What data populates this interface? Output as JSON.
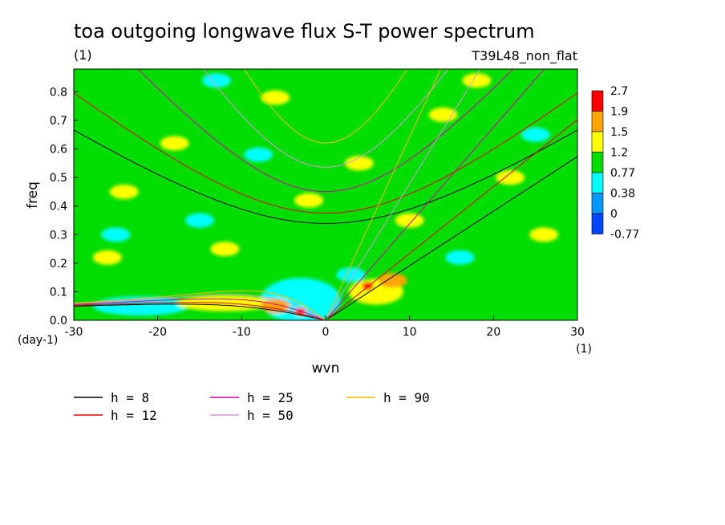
{
  "title": "toa outgoing longwave flux S-T power spectrum",
  "subtitle_left": "(1)",
  "subtitle_right": "T39L48_non_flat",
  "chart_data": {
    "type": "heatmap",
    "xlabel": "wvn",
    "ylabel": "freq",
    "x_unit": "(1)",
    "y_unit": "(day-1)",
    "xlim": [
      -30,
      30
    ],
    "ylim": [
      0,
      0.88
    ],
    "x_ticks": [
      "-30",
      "-20",
      "-10",
      "0",
      "10",
      "20",
      "30"
    ],
    "y_ticks": [
      "0.0",
      "0.1",
      "0.2",
      "0.3",
      "0.4",
      "0.5",
      "0.6",
      "0.7",
      "0.8"
    ],
    "colorbar": {
      "levels": [
        "2.7",
        "1.9",
        "1.5",
        "1.2",
        "0.77",
        "0.38",
        "0",
        "-0.77"
      ],
      "colors": [
        "#ff0000",
        "#ffa500",
        "#ffff00",
        "#00dd00",
        "#00ffff",
        "#0099ff",
        "#0044ff"
      ]
    },
    "field": {
      "background": "#00dd00",
      "low_region": "#00ffff",
      "high_region": "#ffff00",
      "peak": "#ff0000",
      "blobs": [
        {
          "x": -24,
          "y": 0.45,
          "c": "#ffff00"
        },
        {
          "x": -18,
          "y": 0.62,
          "c": "#ffff00"
        },
        {
          "x": -12,
          "y": 0.25,
          "c": "#ffff00"
        },
        {
          "x": -6,
          "y": 0.78,
          "c": "#ffff00"
        },
        {
          "x": 4,
          "y": 0.55,
          "c": "#ffff00"
        },
        {
          "x": 14,
          "y": 0.72,
          "c": "#ffff00"
        },
        {
          "x": 22,
          "y": 0.5,
          "c": "#ffff00"
        },
        {
          "x": 26,
          "y": 0.3,
          "c": "#ffff00"
        },
        {
          "x": -26,
          "y": 0.22,
          "c": "#ffff00"
        },
        {
          "x": 10,
          "y": 0.35,
          "c": "#ffff00"
        },
        {
          "x": -2,
          "y": 0.42,
          "c": "#ffff00"
        },
        {
          "x": 18,
          "y": 0.84,
          "c": "#ffff00"
        },
        {
          "x": -15,
          "y": 0.35,
          "c": "#00ffff"
        },
        {
          "x": -25,
          "y": 0.3,
          "c": "#00ffff"
        },
        {
          "x": 16,
          "y": 0.22,
          "c": "#00ffff"
        },
        {
          "x": -8,
          "y": 0.58,
          "c": "#00ffff"
        },
        {
          "x": -13,
          "y": 0.84,
          "c": "#00ffff"
        },
        {
          "x": 25,
          "y": 0.65,
          "c": "#00ffff"
        },
        {
          "x": 3,
          "y": 0.16,
          "c": "#00ffff"
        },
        {
          "x": -4,
          "y": 0.12,
          "c": "#00ffff"
        },
        {
          "x": 5,
          "y": 0.12,
          "c": "#ff0000"
        },
        {
          "x": -3,
          "y": 0.03,
          "c": "#ff0000"
        },
        {
          "x": 8,
          "y": 0.14,
          "c": "#ffa500"
        },
        {
          "x": -6,
          "y": 0.05,
          "c": "#ffa500"
        }
      ]
    },
    "series": [
      {
        "name": "h =  8",
        "h": 8,
        "color": "#000000"
      },
      {
        "name": "h = 12",
        "h": 12,
        "color": "#ee0000"
      },
      {
        "name": "h = 25",
        "h": 25,
        "color": "#dd00aa"
      },
      {
        "name": "h = 50",
        "h": 50,
        "color": "#dd99dd"
      },
      {
        "name": "h = 90",
        "h": 90,
        "color": "#ffbb00"
      }
    ]
  }
}
